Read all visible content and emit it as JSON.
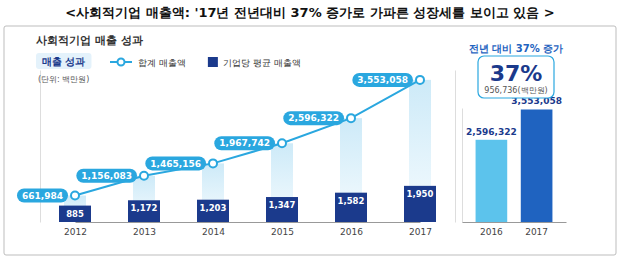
{
  "header": "<사회적기업 매출액: '17년 전년대비 37% 증가로 가파른 성장세를 보이고 있음 >",
  "section_title": "사회적기업 매출 성과",
  "chart_data": [
    {
      "type": "combo",
      "title": "매출 성과",
      "subtitle": "(단위: 백만원)",
      "categories": [
        "2012",
        "2013",
        "2014",
        "2015",
        "2016",
        "2017"
      ],
      "series": [
        {
          "name": "합계 매출액",
          "type": "line",
          "color": "#2aa7df",
          "marker": "circle",
          "values": [
            661984,
            1156083,
            1465156,
            1967742,
            2596322,
            3553058
          ],
          "value_labels": [
            "661,984",
            "1,156,083",
            "1,465,156",
            "1,967,742",
            "2,596,322",
            "3,553,058"
          ]
        },
        {
          "name": "기업당 평균 매출액",
          "type": "bar",
          "axis": "y2",
          "color": "#1b3a8c",
          "values": [
            885,
            1172,
            1203,
            1347,
            1582,
            1950
          ],
          "value_labels": [
            "885",
            "1,172",
            "1,203",
            "1,347",
            "1,582",
            "1,950"
          ]
        }
      ],
      "ylim": [
        0,
        3800000
      ],
      "y2lim": [
        0,
        8200
      ],
      "tick_labels": "x",
      "data_labels": true,
      "legend": "top-left",
      "grid": false
    },
    {
      "type": "bar",
      "title": "전년 대비 37% 증가",
      "annotations": [
        "37%",
        "956,736(백만원)"
      ],
      "categories": [
        "2016",
        "2017"
      ],
      "values": [
        2596322,
        3553058
      ],
      "value_labels": [
        "2,596,322",
        "3,553,058"
      ],
      "colors": [
        "#5cc3ec",
        "#1f63c0"
      ],
      "ylim": [
        0,
        3600000
      ],
      "tick_labels": "x",
      "data_labels": true,
      "grid": false
    }
  ]
}
